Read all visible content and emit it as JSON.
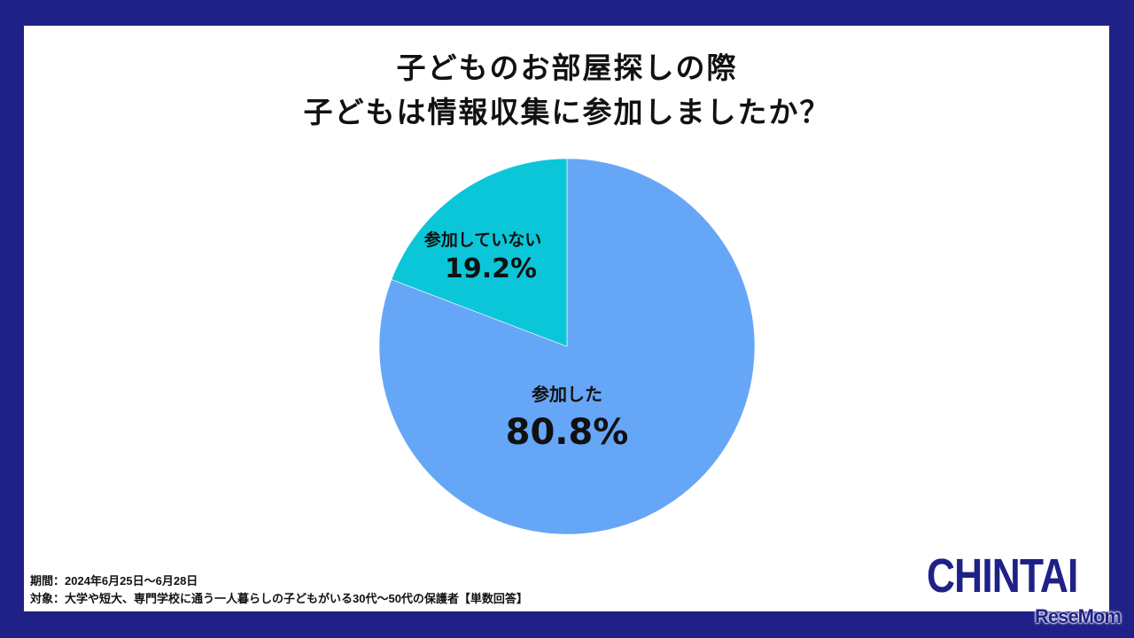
{
  "title": {
    "line1": "子どものお部屋探しの際",
    "line2": "子どもは情報収集に参加しましたか？"
  },
  "colors": {
    "frame": "#1f2187",
    "slice_participated": "#66a6f7",
    "slice_not_participated": "#0bc6d9"
  },
  "chart_data": {
    "type": "pie",
    "title": "子どものお部屋探しの際 子どもは情報収集に参加しましたか？",
    "categories": [
      "参加した",
      "参加していない"
    ],
    "values": [
      80.8,
      19.2
    ],
    "unit": "%",
    "start_angle": "12 o'clock, clockwise"
  },
  "labels": {
    "participated": {
      "name": "参加した",
      "value": "80.8%"
    },
    "not_participated": {
      "name": "参加していない",
      "value": "19.2%"
    }
  },
  "footer": {
    "period": "期間：2024年6月25日〜6月28日",
    "target": "対象：大学や短大、専門学校に通う一人暮らしの子どもがいる30代〜50代の保護者【単数回答】"
  },
  "branding": {
    "logo": "CHINTAI",
    "watermark": "ReseMom"
  }
}
